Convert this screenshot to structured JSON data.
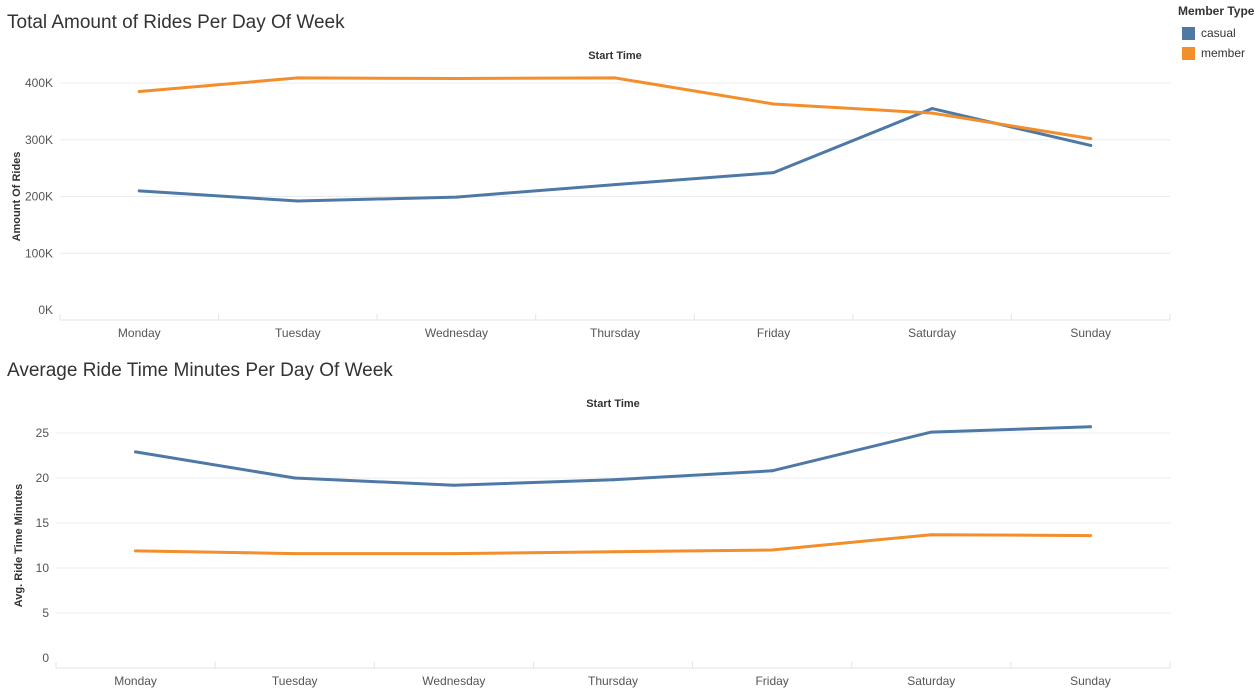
{
  "legend": {
    "title": "Member Type",
    "items": [
      {
        "label": "casual",
        "color": "#4e79a7"
      },
      {
        "label": "member",
        "color": "#f28e2b"
      }
    ]
  },
  "chart_data": [
    {
      "type": "line",
      "title": "Total Amount of  Rides Per Day Of Week",
      "header": "Start Time",
      "ylabel": "Amount Of Rides",
      "categories": [
        "Monday",
        "Tuesday",
        "Wednesday",
        "Thursday",
        "Friday",
        "Saturday",
        "Sunday"
      ],
      "ylim": [
        0,
        400000
      ],
      "yticks": [
        0,
        100000,
        200000,
        300000,
        400000
      ],
      "ytick_labels": [
        "0K",
        "100K",
        "200K",
        "300K",
        "400K"
      ],
      "grid": true,
      "legend": "top-right",
      "series": [
        {
          "name": "casual",
          "color": "#4e79a7",
          "values": [
            210000,
            192000,
            199000,
            221000,
            242000,
            355000,
            290000
          ]
        },
        {
          "name": "member",
          "color": "#f28e2b",
          "values": [
            385000,
            409000,
            408000,
            409000,
            363000,
            347000,
            302000
          ]
        }
      ]
    },
    {
      "type": "line",
      "title": "Average Ride Time Minutes Per Day Of Week",
      "header": "Start Time",
      "ylabel": "Avg. Ride Time Minutes",
      "categories": [
        "Monday",
        "Tuesday",
        "Wednesday",
        "Thursday",
        "Friday",
        "Saturday",
        "Sunday"
      ],
      "ylim": [
        0,
        25
      ],
      "yticks": [
        0,
        5,
        10,
        15,
        20,
        25
      ],
      "ytick_labels": [
        "0",
        "5",
        "10",
        "15",
        "20",
        "25"
      ],
      "grid": true,
      "legend": "top-right",
      "series": [
        {
          "name": "casual",
          "color": "#4e79a7",
          "values": [
            22.9,
            20.0,
            19.2,
            19.8,
            20.8,
            25.1,
            25.7
          ]
        },
        {
          "name": "member",
          "color": "#f28e2b",
          "values": [
            11.9,
            11.6,
            11.6,
            11.8,
            12.0,
            13.7,
            13.6
          ]
        }
      ]
    }
  ]
}
